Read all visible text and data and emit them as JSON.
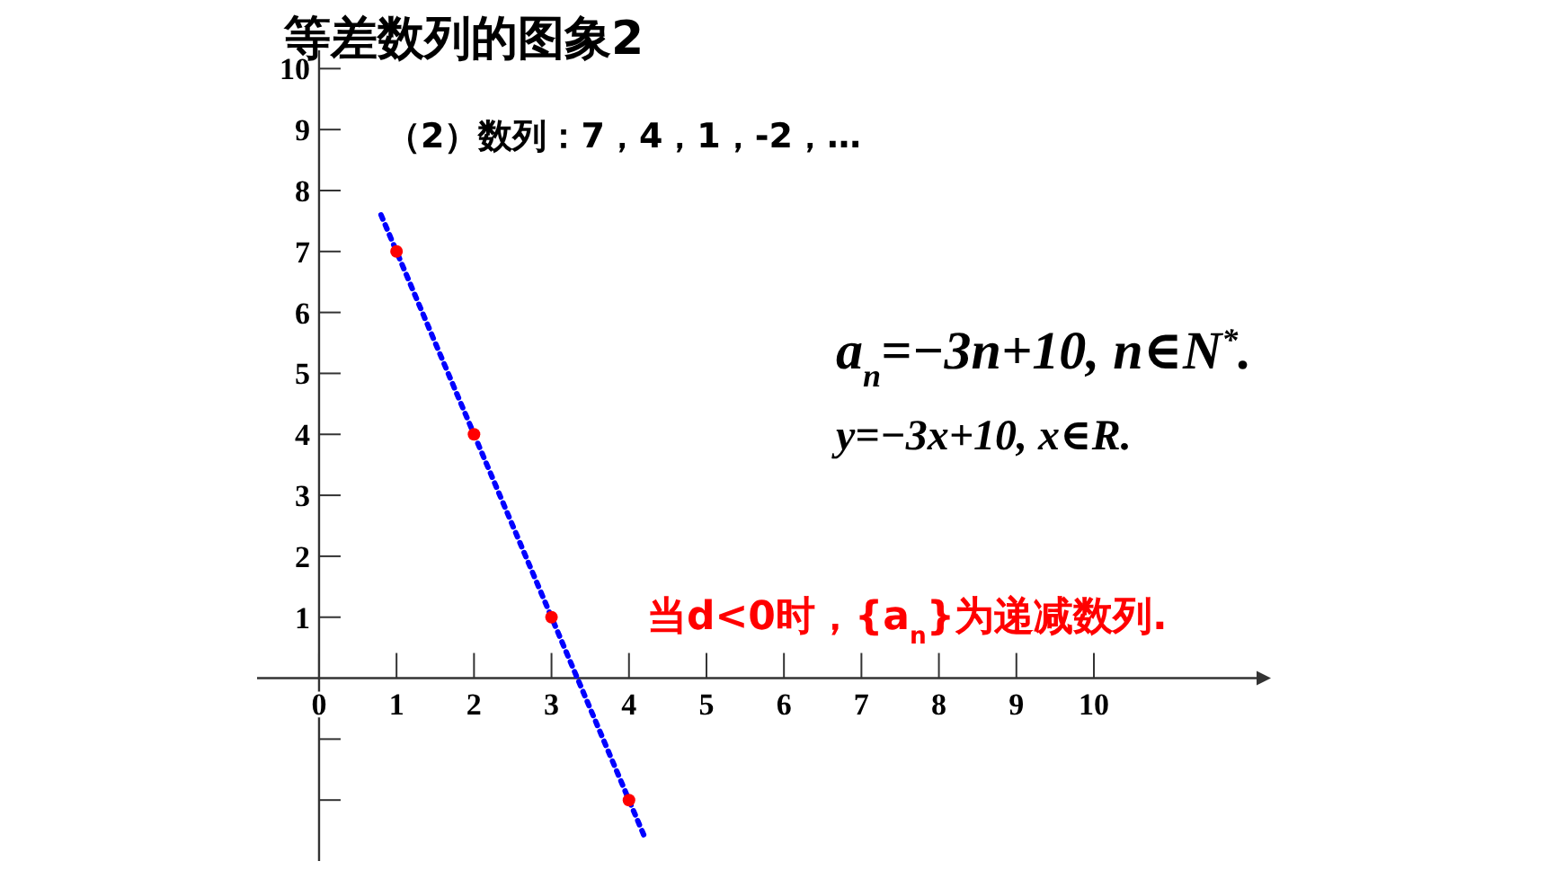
{
  "chart_data": {
    "type": "scatter",
    "title": "等差数列的图象2",
    "subtitle": "（2）数列：7，4，1，-2，…",
    "xlim": [
      -0.8,
      12.1
    ],
    "ylim": [
      -3,
      10.3
    ],
    "xticks": [
      {
        "value": 0,
        "label": "0"
      },
      1,
      2,
      3,
      4,
      5,
      6,
      7,
      8,
      9,
      10
    ],
    "yticks": [
      {
        "value": -2,
        "label": null
      },
      {
        "value": -1,
        "label": null
      },
      1,
      2,
      3,
      4,
      5,
      6,
      7,
      8,
      9,
      10
    ],
    "grid": false,
    "series": [
      {
        "color": "#ff0000",
        "x": [
          1,
          2,
          3,
          4
        ],
        "values": [
          7,
          4,
          1,
          -2
        ],
        "marker": "circle"
      },
      {
        "type": "line",
        "color": "#0000ff",
        "x": [
          0.8,
          4.2
        ],
        "values": [
          7.6,
          -2.6
        ],
        "marker": "none",
        "line_style": "dotted"
      }
    ],
    "annotations": [
      "a$_{n}$=−3n+10, n∈N$^{*}$.",
      "y=−3x+10, x∈R.",
      "当d<0时，{a$_{n}$}为递减数列."
    ]
  }
}
